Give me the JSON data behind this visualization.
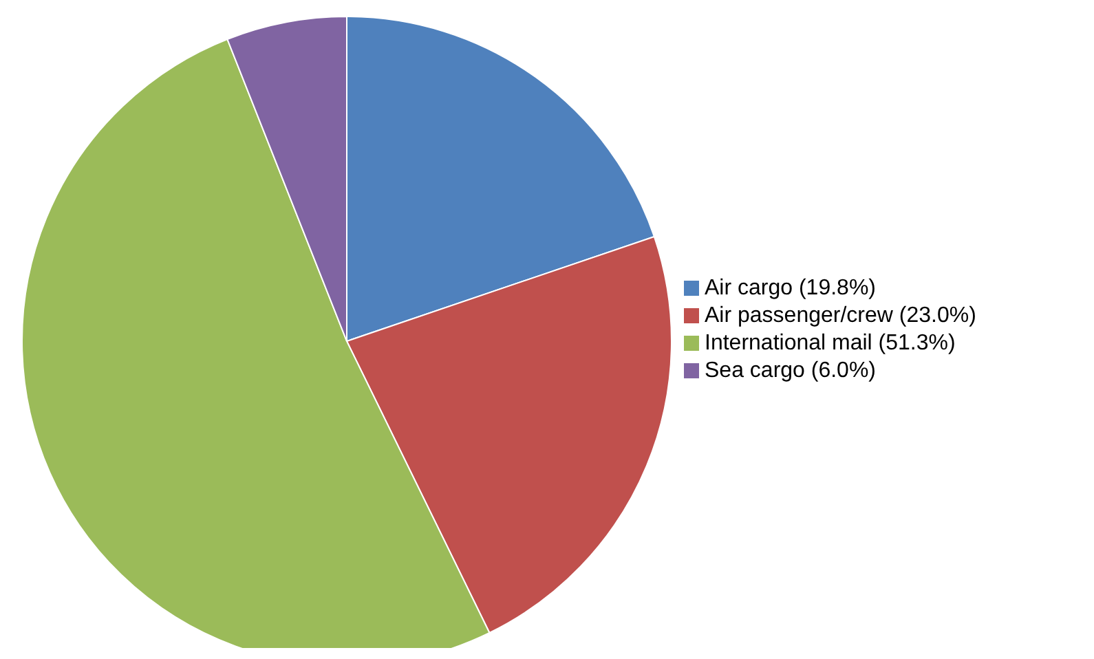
{
  "chart_data": {
    "type": "pie",
    "categories": [
      "Air cargo (19.8%)",
      "Air passenger/crew (23.0%)",
      "International mail (51.3%)",
      "Sea cargo (6.0%)"
    ],
    "values": [
      19.8,
      23.0,
      51.3,
      6.0
    ],
    "colors": [
      "#4f81bd",
      "#c0504d",
      "#9bbb59",
      "#8064a2"
    ],
    "legend": "right"
  }
}
